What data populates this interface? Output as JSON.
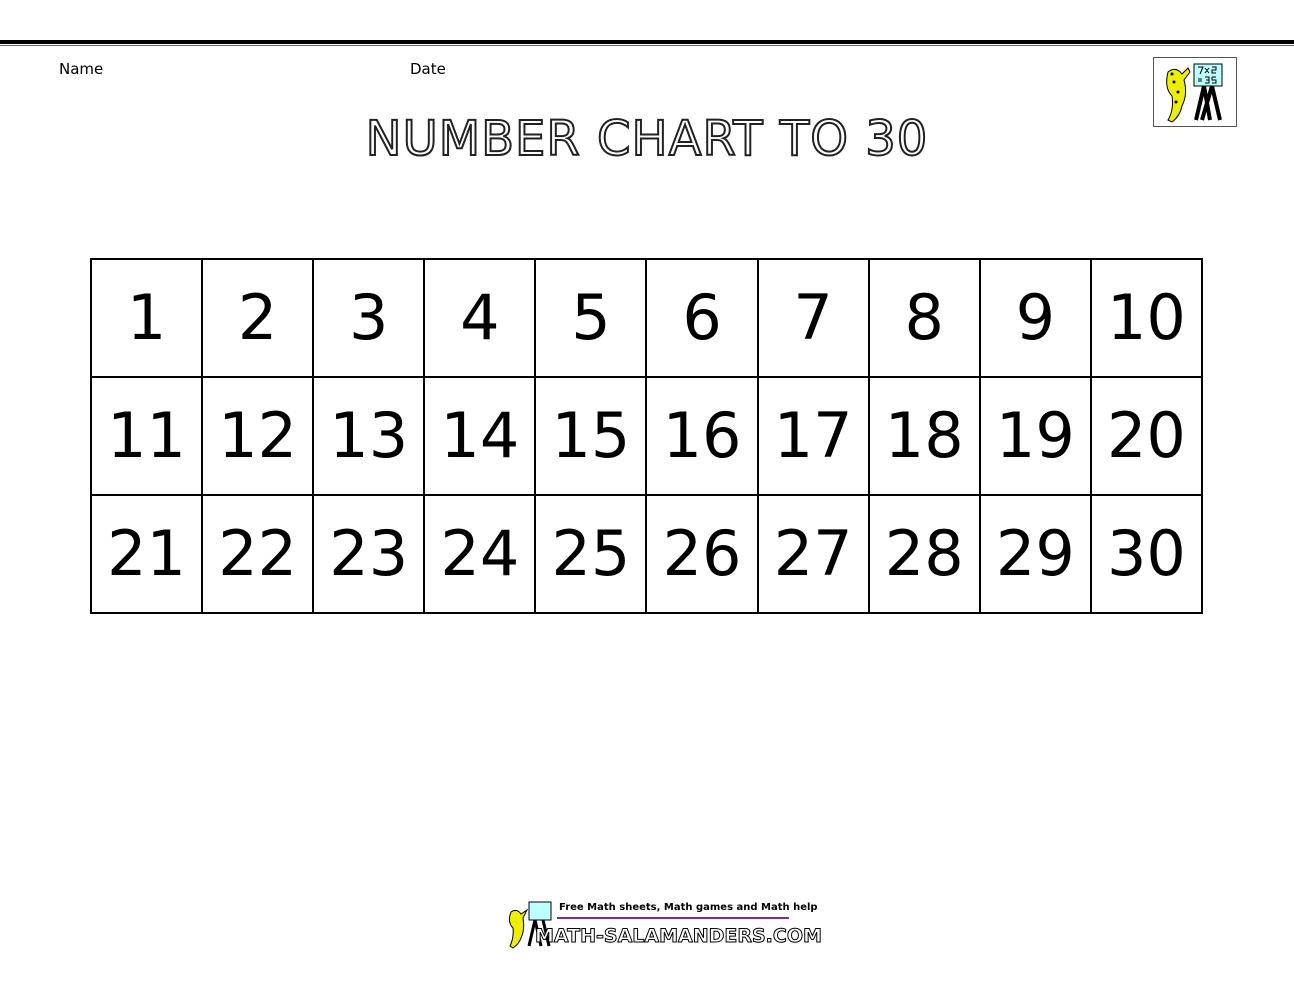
{
  "header": {
    "name_label": "Name",
    "date_label": "Date"
  },
  "title": "NUMBER CHART TO 30",
  "chart": {
    "rows": [
      [
        "1",
        "2",
        "3",
        "4",
        "5",
        "6",
        "7",
        "8",
        "9",
        "10"
      ],
      [
        "11",
        "12",
        "13",
        "14",
        "15",
        "16",
        "17",
        "18",
        "19",
        "20"
      ],
      [
        "21",
        "22",
        "23",
        "24",
        "25",
        "26",
        "27",
        "28",
        "29",
        "30"
      ]
    ]
  },
  "logo": {
    "board_text": "7x5 =35",
    "icon": "salamander-teacher-icon"
  },
  "footer": {
    "tagline": "Free Math sheets, Math games and Math help",
    "site": "MATH-SALAMANDERS.COM",
    "accent": "#7030a0"
  }
}
